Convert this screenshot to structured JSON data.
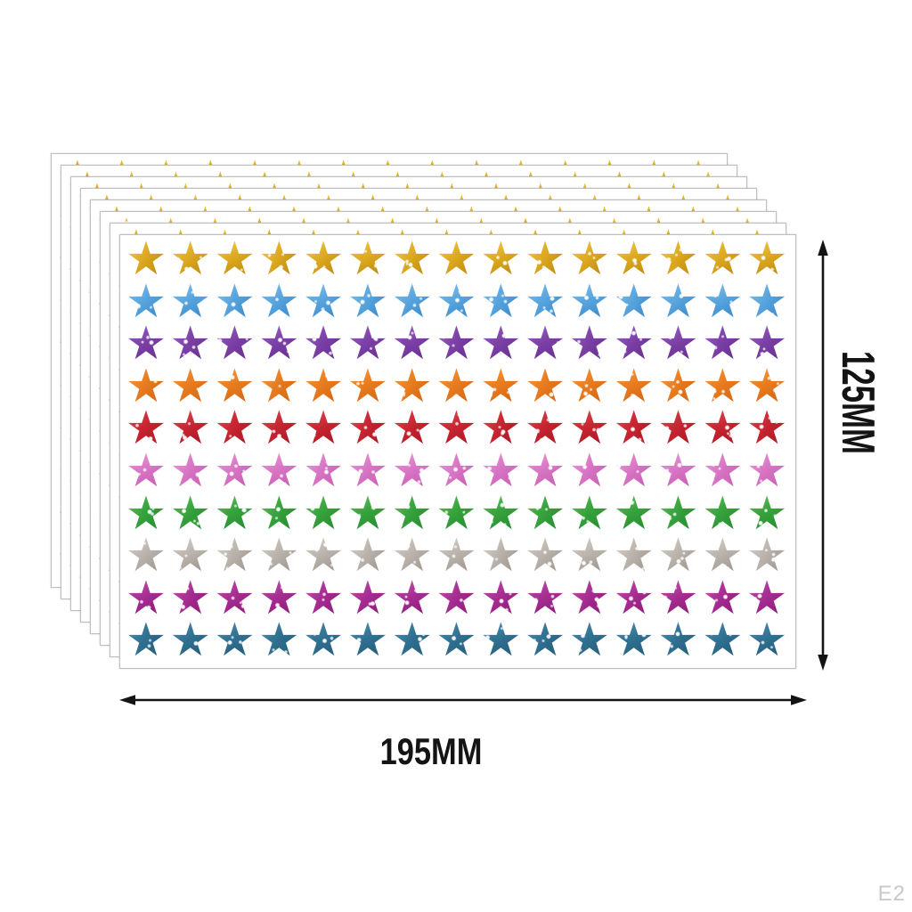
{
  "product": {
    "description": "Stack of glitter star sticker sheets",
    "sheet_count": 8,
    "rows_per_sheet": 10,
    "stars_per_row": 15,
    "star_glyph": "★",
    "row_colors": [
      {
        "name": "gold",
        "light": "#f3d35e",
        "base": "#dca81f",
        "dark": "#ad7c0a"
      },
      {
        "name": "sky-blue",
        "light": "#8fc7ee",
        "base": "#57a4dd",
        "dark": "#2e7fc2"
      },
      {
        "name": "purple",
        "light": "#a06cc9",
        "base": "#7b3fa5",
        "dark": "#5c2a85"
      },
      {
        "name": "orange",
        "light": "#f5a54a",
        "base": "#e87b1e",
        "dark": "#c85e10"
      },
      {
        "name": "red",
        "light": "#e25560",
        "base": "#c62430",
        "dark": "#9a1420"
      },
      {
        "name": "pink",
        "light": "#f0a3dc",
        "base": "#d874c4",
        "dark": "#bf54a8"
      },
      {
        "name": "green",
        "light": "#6bc465",
        "base": "#35a23c",
        "dark": "#1f8229"
      },
      {
        "name": "silver",
        "light": "#dcd8d2",
        "base": "#b9b3ab",
        "dark": "#8f8880"
      },
      {
        "name": "magenta",
        "light": "#c75eb4",
        "base": "#a62c92",
        "dark": "#82156e"
      },
      {
        "name": "teal-blue",
        "light": "#5596b4",
        "base": "#2f6f90",
        "dark": "#1f566f"
      }
    ]
  },
  "dimensions": {
    "width_label": "195MM",
    "height_label": "125MM"
  },
  "watermark": "E2",
  "style_colors": {
    "arrow": "#141414",
    "sheet_border": "#bfbfbf",
    "background": "#ffffff",
    "watermark_text": "#c9c9c9"
  }
}
